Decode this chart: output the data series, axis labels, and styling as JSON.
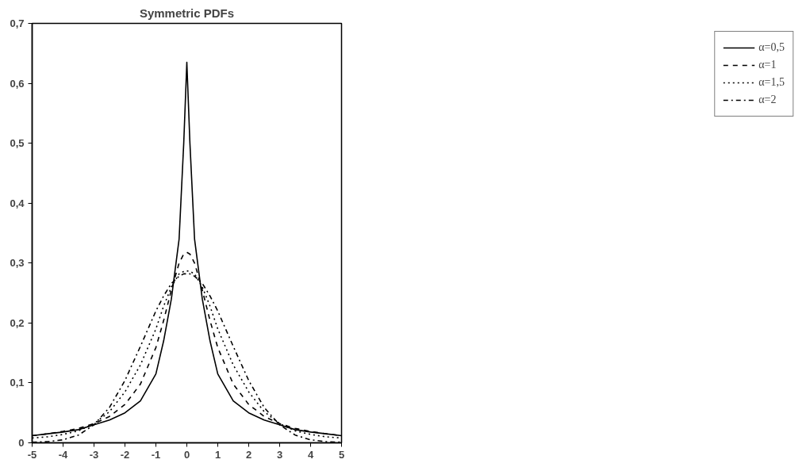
{
  "chart_data": {
    "type": "line",
    "title": "Symmetric PDFs",
    "x": [
      -5,
      -4.5,
      -4,
      -3.5,
      -3,
      -2.5,
      -2,
      -1.5,
      -1,
      -0.75,
      -0.5,
      -0.25,
      -0.1,
      0,
      0.1,
      0.25,
      0.5,
      0.75,
      1,
      1.5,
      2,
      2.5,
      3,
      3.5,
      4,
      4.5,
      5
    ],
    "series": [
      {
        "name": "α=0,5",
        "color": "#000000",
        "line_style": "solid",
        "values": [
          0.012,
          0.015,
          0.018,
          0.022,
          0.03,
          0.038,
          0.05,
          0.07,
          0.115,
          0.17,
          0.24,
          0.34,
          0.5,
          0.635,
          0.5,
          0.34,
          0.24,
          0.17,
          0.115,
          0.07,
          0.05,
          0.038,
          0.03,
          0.022,
          0.018,
          0.015,
          0.012
        ]
      },
      {
        "name": "α=1",
        "color": "#000000",
        "line_style": "dashed",
        "values": [
          0.012,
          0.015,
          0.019,
          0.024,
          0.032,
          0.044,
          0.064,
          0.098,
          0.159,
          0.204,
          0.255,
          0.3,
          0.315,
          0.318,
          0.315,
          0.3,
          0.255,
          0.204,
          0.159,
          0.098,
          0.064,
          0.044,
          0.032,
          0.024,
          0.019,
          0.015,
          0.012
        ]
      },
      {
        "name": "α=1,5",
        "color": "#000000",
        "line_style": "dotted",
        "values": [
          0.008,
          0.01,
          0.014,
          0.02,
          0.032,
          0.052,
          0.085,
          0.13,
          0.19,
          0.228,
          0.26,
          0.282,
          0.286,
          0.287,
          0.286,
          0.282,
          0.26,
          0.228,
          0.19,
          0.13,
          0.085,
          0.052,
          0.032,
          0.02,
          0.014,
          0.01,
          0.008
        ]
      },
      {
        "name": "α=2",
        "color": "#000000",
        "line_style": "dashdot",
        "values": [
          0.001,
          0.002,
          0.005,
          0.013,
          0.03,
          0.059,
          0.104,
          0.161,
          0.22,
          0.245,
          0.266,
          0.278,
          0.282,
          0.282,
          0.282,
          0.278,
          0.266,
          0.245,
          0.22,
          0.161,
          0.104,
          0.059,
          0.03,
          0.013,
          0.005,
          0.002,
          0.001
        ]
      }
    ],
    "xlim": [
      -5,
      5
    ],
    "ylim": [
      0,
      0.7
    ],
    "xticks": [
      -5,
      -4,
      -3,
      -2,
      -1,
      0,
      1,
      2,
      3,
      4,
      5
    ],
    "yticks": [
      0,
      {
        "value": 0.1,
        "label": "0,1"
      },
      {
        "value": 0.2,
        "label": "0,2"
      },
      {
        "value": 0.3,
        "label": "0,3"
      },
      {
        "value": 0.4,
        "label": "0,4"
      },
      {
        "value": 0.5,
        "label": "0,5"
      },
      {
        "value": 0.6,
        "label": "0,6"
      },
      {
        "value": 0.7,
        "label": "0,7"
      }
    ],
    "grid": false,
    "legend": "right",
    "marker": "none"
  }
}
